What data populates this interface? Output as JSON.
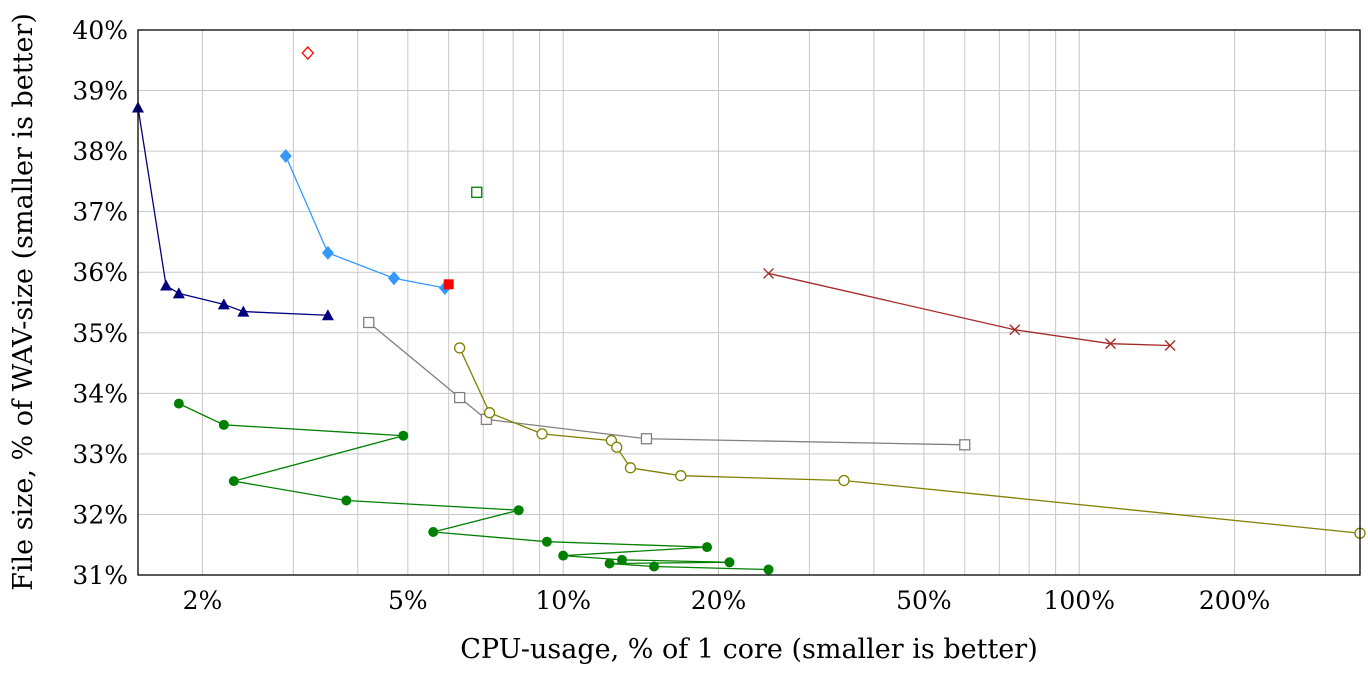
{
  "chart_data": {
    "type": "scatter",
    "title": "",
    "xlabel": "CPU-usage, % of 1 core (smaller is better)",
    "ylabel": "File size, % of WAV-size (smaller is better)",
    "x_scale": "log",
    "xlim": [
      1.5,
      350
    ],
    "ylim": [
      31,
      40
    ],
    "grid": true,
    "x_tick_labels": [
      {
        "value": 2,
        "label": "2%"
      },
      {
        "value": 5,
        "label": "5%"
      },
      {
        "value": 10,
        "label": "10%"
      },
      {
        "value": 20,
        "label": "20%"
      },
      {
        "value": 50,
        "label": "50%"
      },
      {
        "value": 100,
        "label": "100%"
      },
      {
        "value": 200,
        "label": "200%"
      }
    ],
    "y_tick_labels": [
      {
        "value": 31,
        "label": "31%"
      },
      {
        "value": 32,
        "label": "32%"
      },
      {
        "value": 33,
        "label": "33%"
      },
      {
        "value": 34,
        "label": "34%"
      },
      {
        "value": 35,
        "label": "35%"
      },
      {
        "value": 36,
        "label": "36%"
      },
      {
        "value": 37,
        "label": "37%"
      },
      {
        "value": 38,
        "label": "38%"
      },
      {
        "value": 39,
        "label": "39%"
      },
      {
        "value": 40,
        "label": "40%"
      }
    ],
    "series": [
      {
        "color": "#000080",
        "marker": "triangle-filled",
        "line": true,
        "x": [
          1.5,
          1.7,
          1.8,
          2.2,
          2.4,
          3.5
        ],
        "y": [
          38.72,
          35.78,
          35.65,
          35.47,
          35.35,
          35.29
        ]
      },
      {
        "color": "#3399ff",
        "marker": "diamond-filled",
        "line": true,
        "x": [
          2.9,
          3.5,
          4.7,
          5.9
        ],
        "y": [
          37.92,
          36.32,
          35.9,
          35.74
        ]
      },
      {
        "color": "#ff0000",
        "marker": "diamond-open",
        "line": false,
        "x": [
          3.2
        ],
        "y": [
          39.62
        ]
      },
      {
        "color": "#ff0000",
        "marker": "square-filled",
        "line": false,
        "x": [
          6.0
        ],
        "y": [
          35.8
        ]
      },
      {
        "color": "#008000",
        "marker": "square-open",
        "line": false,
        "x": [
          6.8
        ],
        "y": [
          37.32
        ]
      },
      {
        "color": "#a52a2a",
        "marker": "cross",
        "line": true,
        "x": [
          25.0,
          75.0,
          115.0,
          150.0
        ],
        "y": [
          35.98,
          35.05,
          34.82,
          34.79
        ]
      },
      {
        "color": "#808080",
        "marker": "square-open",
        "line": true,
        "x": [
          4.2,
          6.3,
          7.1,
          14.5,
          60.0
        ],
        "y": [
          35.17,
          33.93,
          33.57,
          33.25,
          33.15
        ]
      },
      {
        "color": "#808000",
        "marker": "circle-open",
        "line": true,
        "x": [
          6.3,
          7.2,
          9.1,
          12.4,
          12.7,
          13.5,
          16.9,
          35.0,
          350.0
        ],
        "y": [
          34.75,
          33.68,
          33.33,
          33.22,
          33.11,
          32.77,
          32.64,
          32.56,
          31.69
        ]
      },
      {
        "color": "#008000",
        "marker": "circle-filled",
        "line": true,
        "x": [
          1.8,
          2.2,
          4.9,
          2.3,
          3.8,
          8.2,
          5.6,
          9.3,
          19.0,
          10.0,
          13.0,
          21.0,
          12.3,
          15.0,
          25.0
        ],
        "y": [
          33.83,
          33.48,
          33.3,
          32.55,
          32.23,
          32.07,
          31.71,
          31.55,
          31.46,
          31.32,
          31.25,
          31.21,
          31.19,
          31.14,
          31.09
        ]
      }
    ]
  }
}
